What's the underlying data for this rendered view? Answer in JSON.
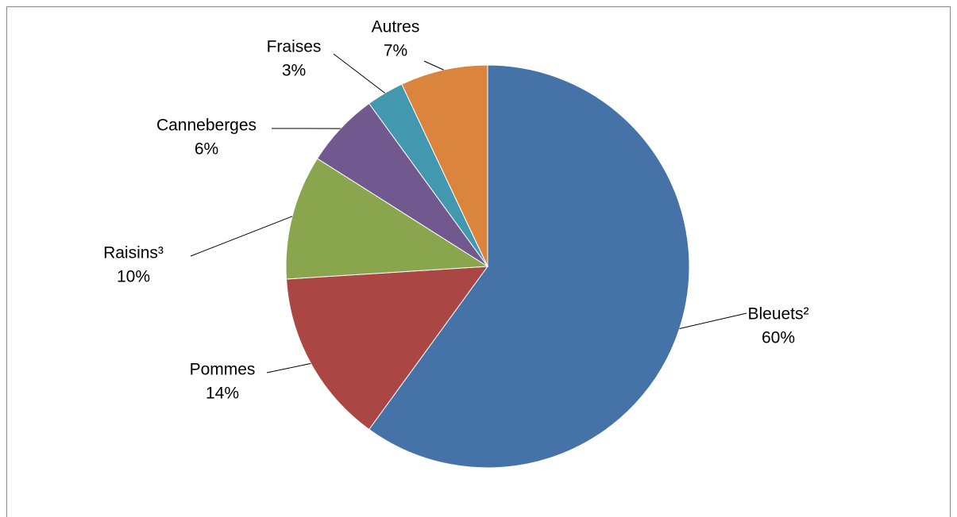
{
  "chart_data": {
    "type": "pie",
    "categories": [
      "Bleuets²",
      "Pommes",
      "Raisins³",
      "Canneberges",
      "Fraises",
      "Autres"
    ],
    "values": [
      60,
      14,
      10,
      6,
      3,
      7
    ],
    "value_labels": [
      "60%",
      "14%",
      "10%",
      "6%",
      "3%",
      "7%"
    ],
    "colors": [
      "#4572a7",
      "#aa4643",
      "#89a54e",
      "#71588f",
      "#4198af",
      "#db843d"
    ]
  }
}
